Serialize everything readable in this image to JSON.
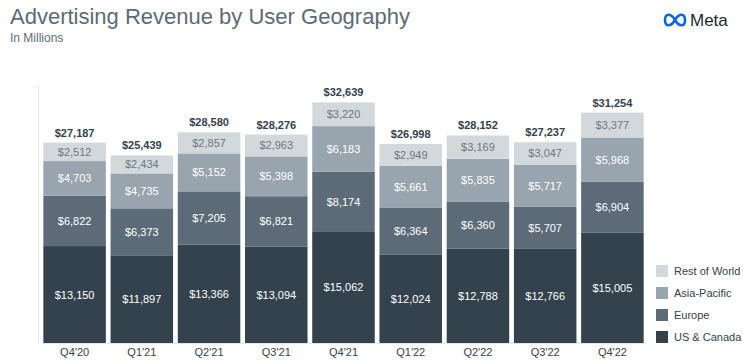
{
  "chart_data": {
    "type": "bar",
    "title": "Advertising Revenue by User Geography",
    "subtitle": "In Millions",
    "logo": "Meta",
    "categories": [
      "Q4'20",
      "Q1'21",
      "Q2'21",
      "Q3'21",
      "Q4'21",
      "Q1'22",
      "Q2'22",
      "Q3'22",
      "Q4'22"
    ],
    "series": [
      {
        "name": "US & Canada",
        "color": "#33424d",
        "values": [
          13150,
          11897,
          13366,
          13094,
          15062,
          12024,
          12788,
          12766,
          15005
        ],
        "value_labels": [
          "$13,150",
          "$11,897",
          "$13,366",
          "$13,094",
          "$15,062",
          "$12,024",
          "$12,788",
          "$12,766",
          "$15,005"
        ]
      },
      {
        "name": "Europe",
        "color": "#5c6b77",
        "values": [
          6822,
          6373,
          7205,
          6821,
          8174,
          6364,
          6360,
          5707,
          6904
        ],
        "value_labels": [
          "$6,822",
          "$6,373",
          "$7,205",
          "$6,821",
          "$8,174",
          "$6,364",
          "$6,360",
          "$5,707",
          "$6,904"
        ]
      },
      {
        "name": "Asia-Pacific",
        "color": "#98a4ae",
        "values": [
          4703,
          4735,
          5152,
          5398,
          6183,
          5661,
          5835,
          5717,
          5968
        ],
        "value_labels": [
          "$4,703",
          "$4,735",
          "$5,152",
          "$5,398",
          "$6,183",
          "$5,661",
          "$5,835",
          "$5,717",
          "$5,968"
        ]
      },
      {
        "name": "Rest of World",
        "color": "#d3d8dc",
        "values": [
          2512,
          2434,
          2857,
          2963,
          3220,
          2949,
          3169,
          3047,
          3377
        ],
        "value_labels": [
          "$2,512",
          "$2,434",
          "$2,857",
          "$2,963",
          "$3,220",
          "$2,949",
          "$3,169",
          "$3,047",
          "$3,377"
        ]
      }
    ],
    "totals": [
      27187,
      25439,
      28580,
      28276,
      32639,
      26998,
      28152,
      27237,
      31254
    ],
    "total_labels": [
      "$27,187",
      "$25,439",
      "$28,580",
      "$28,276",
      "$32,639",
      "$26,998",
      "$28,152",
      "$27,237",
      "$31,254"
    ],
    "ylim": [
      0,
      35000
    ],
    "stacked": true,
    "data_labels": true,
    "grid": false,
    "legend": "right",
    "tick_labels": "x"
  }
}
